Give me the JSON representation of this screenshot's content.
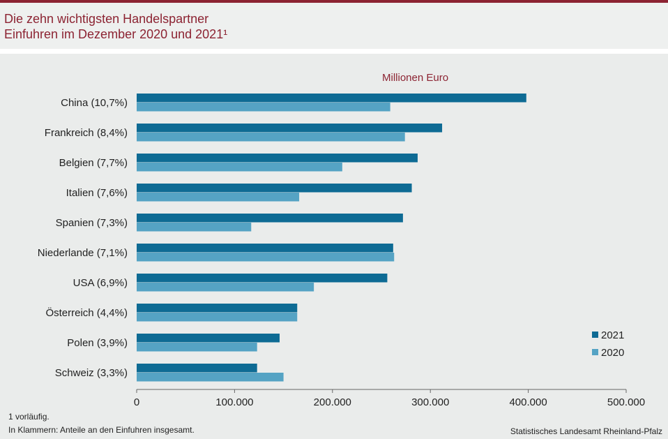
{
  "header": {
    "title_line1": "Die zehn wichtigsten Handelspartner",
    "title_line2": "Einfuhren im Dezember 2020 und 2021¹"
  },
  "footer": {
    "footnote1": "1 vorläufig.",
    "footnote2": "In Klammern: Anteile an den Einfuhren insgesamt.",
    "source": "Statistisches Landesamt Rheinland-Pfalz"
  },
  "colors": {
    "accent": "#8c2332",
    "series_2021": "#0e6b94",
    "series_2020": "#55a3c4"
  },
  "chart_data": {
    "type": "bar",
    "orientation": "horizontal",
    "unit_label": "Millionen Euro",
    "categories": [
      "China (10,7%)",
      "Frankreich (8,4%)",
      "Belgien (7,7%)",
      "Italien (7,6%)",
      "Spanien (7,3%)",
      "Niederlande (7,1%)",
      "USA (6,9%)",
      "Österreich (4,4%)",
      "Polen (3,9%)",
      "Schweiz (3,3%)"
    ],
    "series": [
      {
        "name": "2021",
        "values": [
          398000,
          312000,
          287000,
          281000,
          272000,
          262000,
          256000,
          164000,
          146000,
          123000
        ]
      },
      {
        "name": "2020",
        "values": [
          259000,
          274000,
          210000,
          166000,
          117000,
          263000,
          181000,
          164000,
          123000,
          150000
        ]
      }
    ],
    "xlim": [
      0,
      500000
    ],
    "xticks": [
      0,
      100000,
      200000,
      300000,
      400000,
      500000
    ],
    "xtick_labels": [
      "0",
      "100.000",
      "200.000",
      "300.000",
      "400.000",
      "500.000"
    ],
    "grid": false,
    "legend_position": "right"
  }
}
